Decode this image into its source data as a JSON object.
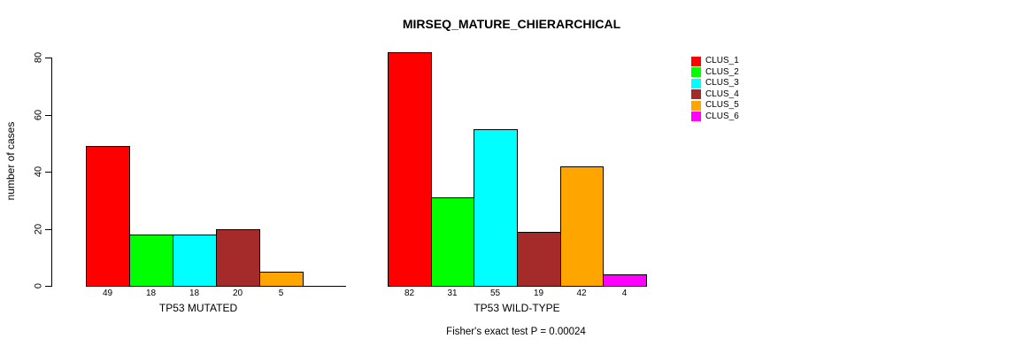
{
  "chart_data": {
    "type": "bar",
    "title": "MIRSEQ_MATURE_CHIERARCHICAL",
    "ylabel": "number of cases",
    "xlabel": "",
    "ylim": [
      0,
      80
    ],
    "yticks": [
      0,
      20,
      40,
      60,
      80
    ],
    "grid": false,
    "legend_position": "right-top",
    "categories": [
      "TP53 MUTATED",
      "TP53 WILD-TYPE"
    ],
    "series": [
      {
        "name": "CLUS_1",
        "color": "#FF0000",
        "values": [
          49,
          82
        ]
      },
      {
        "name": "CLUS_2",
        "color": "#00FF00",
        "values": [
          18,
          31
        ]
      },
      {
        "name": "CLUS_3",
        "color": "#00FFFF",
        "values": [
          18,
          55
        ]
      },
      {
        "name": "CLUS_4",
        "color": "#A52A2A",
        "values": [
          20,
          19
        ]
      },
      {
        "name": "CLUS_5",
        "color": "#FFA500",
        "values": [
          5,
          42
        ]
      },
      {
        "name": "CLUS_6",
        "color": "#FF00FF",
        "values": [
          0,
          4
        ]
      }
    ],
    "bar_value_labels": {
      "TP53 MUTATED": [
        "49",
        "18",
        "18",
        "20",
        "5"
      ],
      "TP53 WILD-TYPE": [
        "82",
        "31",
        "55",
        "19",
        "42",
        "4"
      ]
    },
    "annotation": "Fisher's exact test P = 0.00024",
    "axis_color": "#000000",
    "bar_border_color": "#000000"
  }
}
